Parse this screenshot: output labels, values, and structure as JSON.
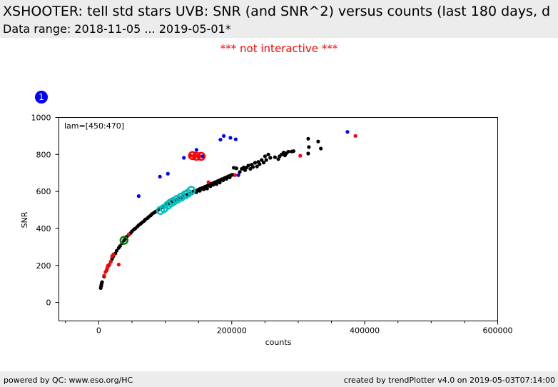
{
  "header": {
    "title": "XSHOOTER: tell std stars UVB: SNR (and SNR^2) versus counts (last 180 days, d",
    "subtitle": "Data range: 2018-11-05 ... 2019-05-01*"
  },
  "notice": "*** not interactive ***",
  "plot_badge": "1",
  "footer": {
    "left": "powered by QC: www.eso.org/HC",
    "right": "created by trendPlotter v4.0 on 2019-05-03T07:14:00"
  },
  "colors": {
    "data": "#000000",
    "outlier_red": "#ff0000",
    "outlier_blue": "#0000ff",
    "highlight_cyan": "#00c0c0",
    "highlight_green": "#008000",
    "notice": "#ff0000",
    "badge": "#0000ff"
  },
  "chart_data": {
    "type": "scatter",
    "title": "",
    "annotation": "lam=[450:470]",
    "xlabel": "counts",
    "ylabel": "SNR",
    "xlim": [
      -60000,
      600000
    ],
    "ylim": [
      -100,
      1000
    ],
    "xticks": [
      0,
      200000,
      400000,
      600000
    ],
    "xtick_labels": [
      "0",
      "200000",
      "400000",
      "600000"
    ],
    "yticks": [
      0,
      200,
      400,
      600,
      800,
      1000
    ],
    "ytick_labels": [
      "0",
      "200",
      "400",
      "600",
      "800",
      "1000"
    ],
    "grid": false,
    "series": [
      {
        "color": "#000000",
        "marker": "dot",
        "points": [
          [
            3000,
            78
          ],
          [
            3500,
            88
          ],
          [
            4000,
            95
          ],
          [
            4200,
            102
          ],
          [
            5000,
            110
          ],
          [
            8000,
            140
          ],
          [
            12000,
            175
          ],
          [
            15000,
            200
          ],
          [
            18000,
            220
          ],
          [
            20000,
            235
          ],
          [
            22000,
            250
          ],
          [
            25000,
            265
          ],
          [
            27000,
            280
          ],
          [
            30000,
            295
          ],
          [
            32000,
            305
          ],
          [
            35000,
            320
          ],
          [
            38000,
            335
          ],
          [
            40000,
            345
          ],
          [
            42000,
            355
          ],
          [
            45000,
            365
          ],
          [
            48000,
            375
          ],
          [
            50000,
            385
          ],
          [
            53000,
            395
          ],
          [
            55000,
            400
          ],
          [
            58000,
            410
          ],
          [
            60000,
            418
          ],
          [
            63000,
            425
          ],
          [
            65000,
            432
          ],
          [
            68000,
            440
          ],
          [
            70000,
            448
          ],
          [
            73000,
            455
          ],
          [
            75000,
            462
          ],
          [
            78000,
            470
          ],
          [
            80000,
            478
          ],
          [
            83000,
            485
          ],
          [
            85000,
            490
          ],
          [
            88000,
            497
          ],
          [
            90000,
            503
          ],
          [
            93000,
            510
          ],
          [
            95000,
            515
          ],
          [
            98000,
            520
          ],
          [
            100000,
            526
          ],
          [
            103000,
            531
          ],
          [
            105000,
            535
          ],
          [
            108000,
            540
          ],
          [
            110000,
            545
          ],
          [
            113000,
            550
          ],
          [
            115000,
            553
          ],
          [
            118000,
            558
          ],
          [
            120000,
            562
          ],
          [
            123000,
            567
          ],
          [
            125000,
            570
          ],
          [
            128000,
            574
          ],
          [
            130000,
            578
          ],
          [
            133000,
            583
          ],
          [
            135000,
            587
          ],
          [
            138000,
            590
          ],
          [
            140000,
            594
          ],
          [
            143000,
            598
          ],
          [
            145000,
            602
          ],
          [
            148000,
            606
          ],
          [
            150000,
            610
          ],
          [
            152000,
            614
          ],
          [
            155000,
            618
          ],
          [
            158000,
            622
          ],
          [
            160000,
            626
          ],
          [
            163000,
            630
          ],
          [
            165000,
            634
          ],
          [
            168000,
            638
          ],
          [
            170000,
            642
          ],
          [
            173000,
            646
          ],
          [
            175000,
            650
          ],
          [
            178000,
            654
          ],
          [
            180000,
            658
          ],
          [
            183000,
            662
          ],
          [
            185000,
            666
          ],
          [
            188000,
            670
          ],
          [
            190000,
            674
          ],
          [
            193000,
            678
          ],
          [
            195000,
            682
          ],
          [
            198000,
            686
          ],
          [
            200000,
            690
          ],
          [
            142000,
            600
          ],
          [
            147000,
            596
          ],
          [
            152000,
            604
          ],
          [
            158000,
            612
          ],
          [
            163000,
            616
          ],
          [
            168000,
            628
          ],
          [
            172000,
            636
          ],
          [
            177000,
            640
          ],
          [
            182000,
            648
          ],
          [
            187000,
            660
          ],
          [
            192000,
            668
          ],
          [
            197000,
            676
          ],
          [
            202000,
            690
          ],
          [
            203000,
            728
          ],
          [
            207000,
            725
          ],
          [
            212000,
            705
          ],
          [
            215000,
            722
          ],
          [
            218000,
            730
          ],
          [
            220000,
            715
          ],
          [
            222000,
            728
          ],
          [
            225000,
            740
          ],
          [
            228000,
            722
          ],
          [
            230000,
            745
          ],
          [
            232000,
            732
          ],
          [
            235000,
            755
          ],
          [
            238000,
            735
          ],
          [
            240000,
            760
          ],
          [
            242000,
            748
          ],
          [
            245000,
            770
          ],
          [
            248000,
            756
          ],
          [
            250000,
            790
          ],
          [
            252000,
            770
          ],
          [
            255000,
            800
          ],
          [
            258000,
            782
          ],
          [
            265000,
            785
          ],
          [
            270000,
            775
          ],
          [
            272000,
            790
          ],
          [
            275000,
            800
          ],
          [
            278000,
            810
          ],
          [
            280000,
            795
          ],
          [
            282000,
            806
          ],
          [
            285000,
            815
          ],
          [
            290000,
            816
          ],
          [
            293000,
            818
          ],
          [
            315000,
            885
          ],
          [
            316000,
            840
          ],
          [
            315000,
            805
          ],
          [
            330000,
            870
          ],
          [
            334000,
            832
          ],
          [
            100000,
            528
          ],
          [
            108000,
            545
          ],
          [
            116000,
            556
          ],
          [
            124000,
            566
          ],
          [
            132000,
            580
          ],
          [
            140000,
            590
          ],
          [
            112000,
            548
          ],
          [
            120000,
            560
          ],
          [
            128000,
            572
          ],
          [
            136000,
            584
          ],
          [
            144000,
            598
          ],
          [
            150000,
            606
          ],
          [
            156000,
            614
          ],
          [
            146000,
            602
          ]
        ]
      },
      {
        "color": "#ff0000",
        "marker": "dot",
        "points": [
          [
            8000,
            145
          ],
          [
            10000,
            165
          ],
          [
            12000,
            178
          ],
          [
            13000,
            190
          ],
          [
            14000,
            200
          ],
          [
            16000,
            205
          ],
          [
            18000,
            220
          ],
          [
            20000,
            250
          ],
          [
            22000,
            260
          ],
          [
            30000,
            205
          ],
          [
            45000,
            368
          ],
          [
            165000,
            650
          ],
          [
            205000,
            688
          ],
          [
            303000,
            793
          ],
          [
            386000,
            900
          ],
          [
            138000,
            793
          ],
          [
            145000,
            790
          ],
          [
            150000,
            788
          ]
        ]
      },
      {
        "color": "#0000ff",
        "marker": "dot",
        "points": [
          [
            60000,
            575
          ],
          [
            92000,
            680
          ],
          [
            104000,
            696
          ],
          [
            128000,
            782
          ],
          [
            147000,
            825
          ],
          [
            156000,
            790
          ],
          [
            183000,
            880
          ],
          [
            188000,
            900
          ],
          [
            198000,
            890
          ],
          [
            206000,
            882
          ],
          [
            210000,
            688
          ],
          [
            374000,
            922
          ]
        ]
      },
      {
        "color": "#00c0c0",
        "marker": "ring",
        "points": [
          [
            93000,
            498
          ],
          [
            98000,
            508
          ],
          [
            104000,
            526
          ],
          [
            108000,
            538
          ],
          [
            112000,
            546
          ],
          [
            118000,
            558
          ],
          [
            124000,
            570
          ],
          [
            130000,
            582
          ],
          [
            134000,
            590
          ],
          [
            139000,
            606
          ]
        ]
      },
      {
        "color": "#008000",
        "marker": "ring",
        "points": [
          [
            38000,
            336
          ]
        ]
      },
      {
        "color": "#ff0000",
        "marker": "ring",
        "points": [
          [
            141000,
            794
          ],
          [
            147000,
            790
          ],
          [
            154000,
            790
          ]
        ]
      }
    ]
  }
}
